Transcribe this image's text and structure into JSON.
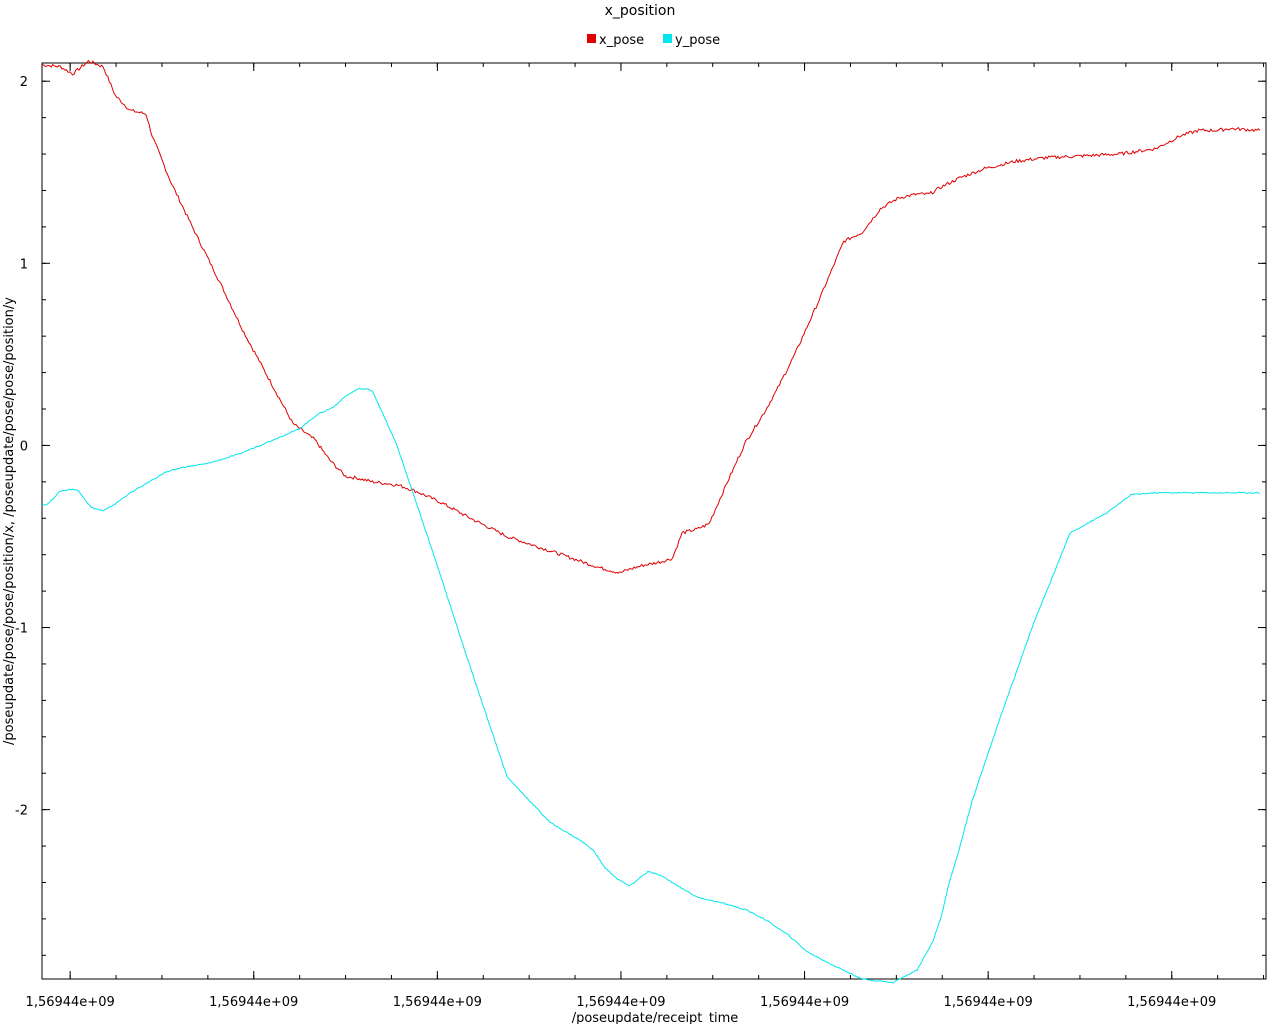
{
  "chart_data": {
    "type": "line",
    "title": "x_position",
    "xlabel": "/poseupdate/receipt_time",
    "ylabel": "/poseupdate/pose/pose/position/x, /poseupdate/pose/pose/position/y",
    "xlim": [
      0,
      100
    ],
    "ylim": [
      -2.93,
      2.1
    ],
    "x_tick_labels": [
      "1,56944e+09",
      "1,56944e+09",
      "1,56944e+09",
      "1,56944e+09",
      "1,56944e+09",
      "1,56944e+09",
      "1,56944e+09"
    ],
    "x_tick_positions": [
      2.3,
      17.3,
      32.3,
      47.3,
      62.3,
      77.3,
      92.3
    ],
    "y_tick_labels": [
      "2",
      "1",
      "0",
      "-1",
      "-2"
    ],
    "y_tick_values": [
      2,
      1,
      0,
      -1,
      -2
    ],
    "grid": false,
    "legend_position": "top-center",
    "series": [
      {
        "name": "x_pose",
        "color": "#e00000",
        "x": [
          0,
          1.5,
          2.5,
          3.8,
          5.0,
          6.0,
          7.2,
          8.5,
          9.0,
          10.5,
          12.5,
          14.5,
          16.5,
          18.5,
          20.5,
          21.5,
          22.3,
          23.5,
          24.8,
          25.8,
          27.0,
          28.3,
          29.2,
          30.5,
          32.5,
          35.0,
          38.0,
          42.0,
          45.5,
          47.2,
          48.0,
          49.0,
          50.5,
          51.5,
          52.3,
          53.5,
          54.5,
          56.0,
          57.5,
          59.0,
          60.0,
          61.5,
          63.5,
          65.5,
          67.0,
          68.5,
          70.0,
          71.5,
          72.5,
          73.5,
          75.0,
          77.0,
          79.5,
          82.0,
          85.0,
          88.0,
          91.0,
          93.0,
          94.5,
          96.0,
          97.0,
          99.5
        ],
        "values": [
          2.09,
          2.08,
          2.04,
          2.11,
          2.08,
          1.92,
          1.84,
          1.82,
          1.7,
          1.45,
          1.17,
          0.9,
          0.62,
          0.37,
          0.12,
          0.07,
          0.03,
          -0.08,
          -0.17,
          -0.18,
          -0.2,
          -0.21,
          -0.22,
          -0.25,
          -0.31,
          -0.4,
          -0.5,
          -0.59,
          -0.67,
          -0.7,
          -0.68,
          -0.66,
          -0.64,
          -0.62,
          -0.48,
          -0.46,
          -0.43,
          -0.2,
          0.02,
          0.18,
          0.3,
          0.5,
          0.8,
          1.12,
          1.17,
          1.3,
          1.36,
          1.38,
          1.38,
          1.42,
          1.47,
          1.52,
          1.56,
          1.58,
          1.59,
          1.6,
          1.63,
          1.7,
          1.73,
          1.73,
          1.74,
          1.73
        ]
      },
      {
        "name": "y_pose",
        "color": "#00e5ee",
        "x": [
          0,
          0.5,
          1.5,
          2.5,
          3.0,
          4.0,
          5.0,
          6.0,
          7.0,
          8.5,
          10.0,
          11.5,
          13.5,
          16.0,
          18.5,
          21.0,
          22.5,
          23.8,
          24.8,
          25.8,
          26.5,
          27.0,
          29.0,
          32.0,
          35.0,
          38.0,
          41.5,
          44.0,
          45.0,
          46.0,
          47.0,
          48.0,
          49.5,
          50.5,
          52.0,
          53.5,
          56.0,
          57.5,
          59.0,
          61.0,
          62.5,
          64.5,
          67.0,
          69.5,
          71.5,
          72.8,
          73.5,
          74.0,
          74.8,
          76.0,
          78.0,
          81.0,
          84.0,
          87.0,
          89.0,
          91.0,
          92.5,
          94.0,
          96.0,
          97.0,
          99.5
        ],
        "values": [
          -0.33,
          -0.32,
          -0.25,
          -0.24,
          -0.25,
          -0.34,
          -0.36,
          -0.32,
          -0.27,
          -0.21,
          -0.15,
          -0.12,
          -0.1,
          -0.05,
          0.02,
          0.09,
          0.17,
          0.21,
          0.27,
          0.31,
          0.31,
          0.3,
          0.0,
          -0.6,
          -1.22,
          -1.82,
          -2.07,
          -2.17,
          -2.22,
          -2.32,
          -2.38,
          -2.42,
          -2.34,
          -2.36,
          -2.42,
          -2.48,
          -2.52,
          -2.55,
          -2.6,
          -2.69,
          -2.78,
          -2.85,
          -2.93,
          -2.95,
          -2.88,
          -2.72,
          -2.58,
          -2.43,
          -2.25,
          -1.95,
          -1.55,
          -0.98,
          -0.48,
          -0.37,
          -0.27,
          -0.26,
          -0.26,
          -0.26,
          -0.26,
          -0.26,
          -0.26
        ]
      }
    ]
  }
}
